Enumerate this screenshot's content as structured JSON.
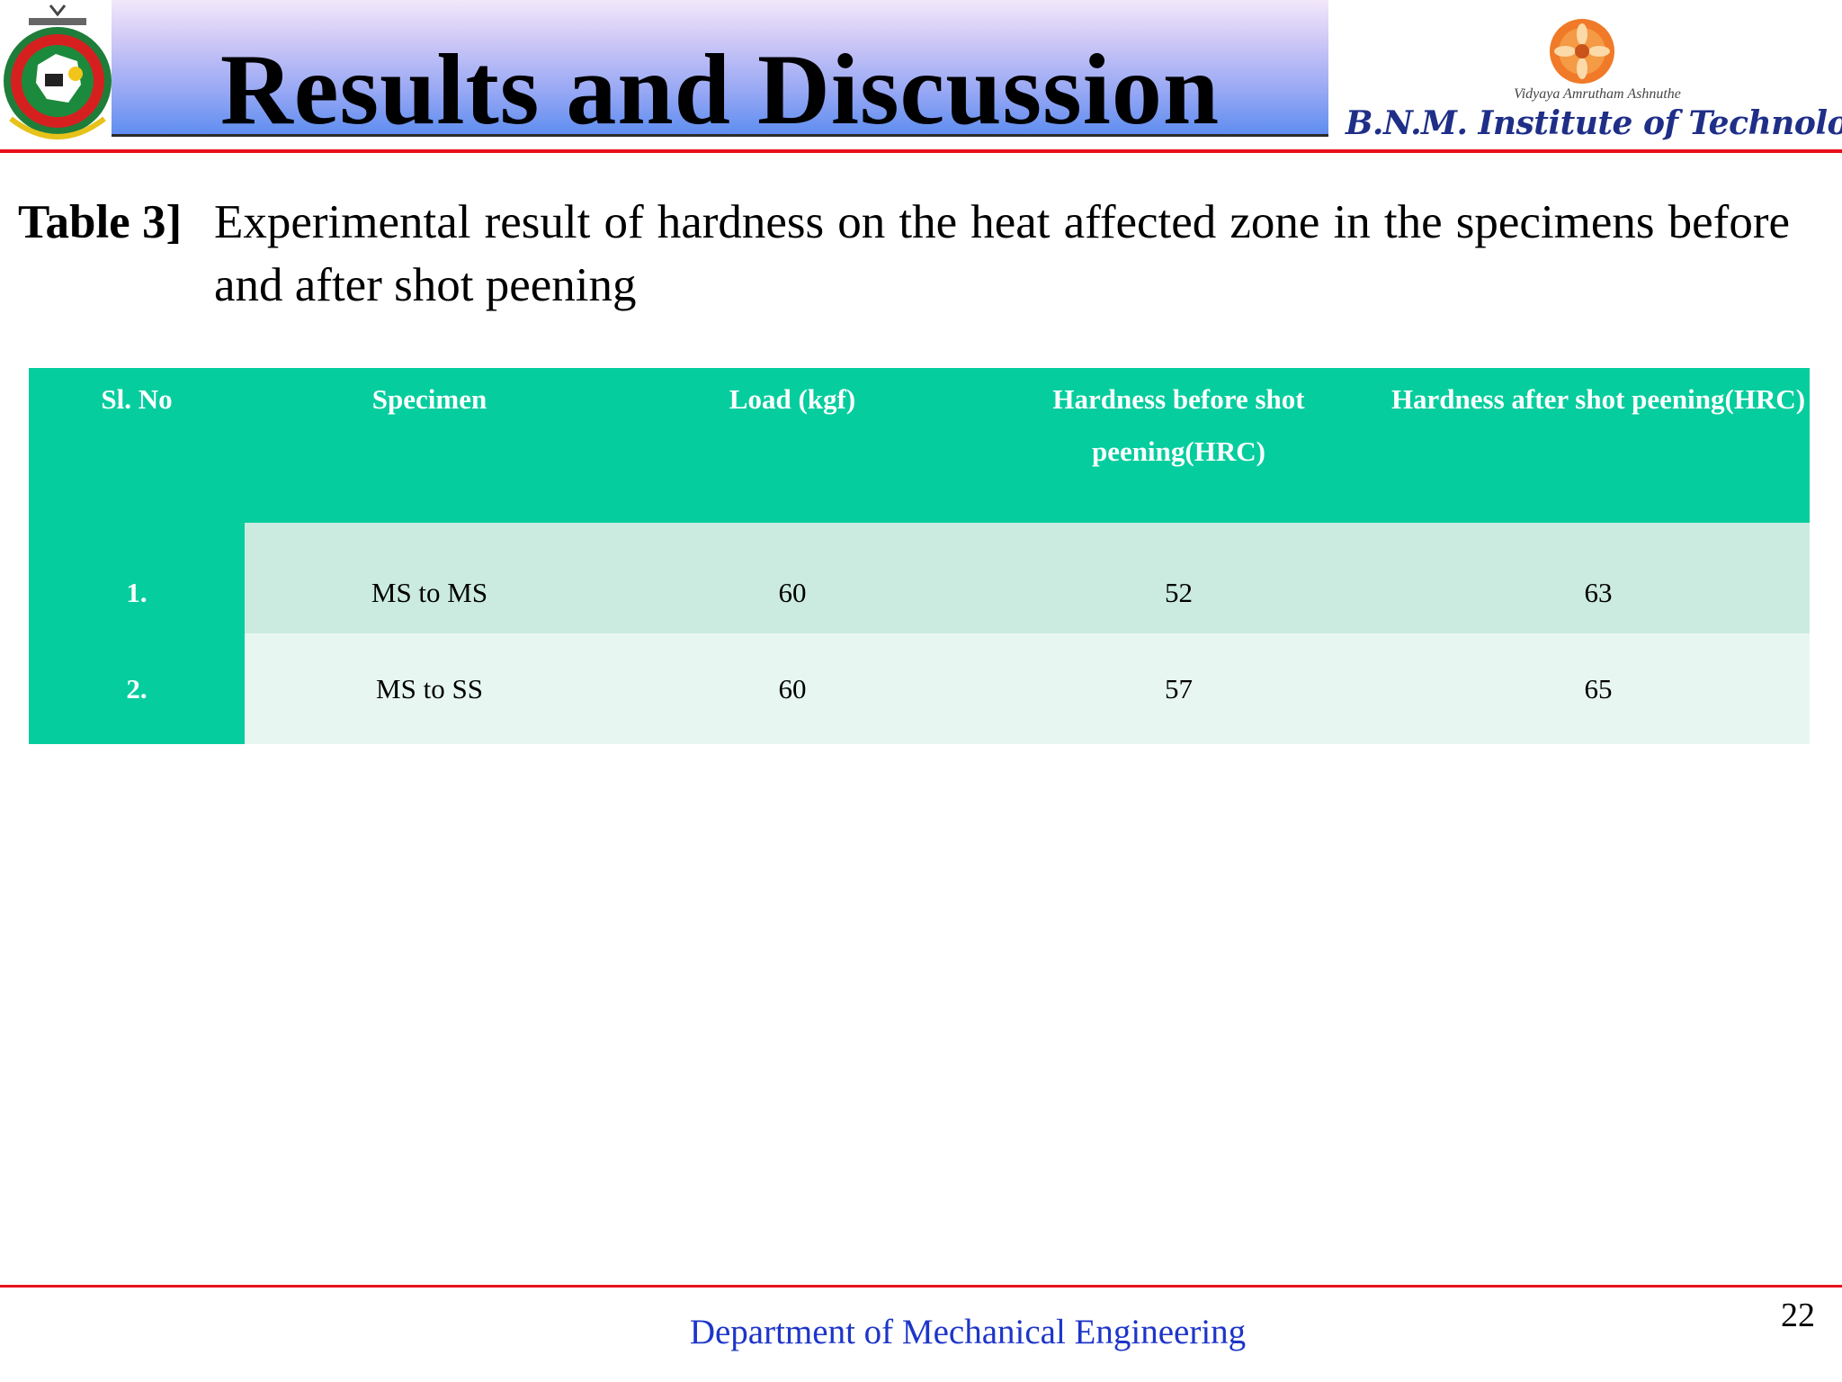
{
  "header": {
    "title": "Results and Discussion",
    "logo_tagline": "Vidyaya Amrutham Ashnuthe",
    "institute_name": "B.N.M. Institute of Technology",
    "banner_colors": [
      "#f2e8fb",
      "#5f8ef0"
    ],
    "accent_line_color": "#e8101c"
  },
  "caption": {
    "label": "Table 3]",
    "text": "Experimental result of hardness on the heat affected zone in the specimens before and after shot peening"
  },
  "table": {
    "header_color": "#05cd9e",
    "columns": [
      "Sl. No",
      "Specimen",
      "Load (kgf)",
      "Hardness before shot peening(HRC)",
      "Hardness after shot peening(HRC)"
    ],
    "rows": [
      [
        "1.",
        "MS to MS",
        "60",
        "52",
        "63"
      ],
      [
        "2.",
        "MS to SS",
        "60",
        "57",
        "65"
      ]
    ]
  },
  "footer": {
    "department": "Department of Mechanical Engineering",
    "page_number": "22"
  }
}
